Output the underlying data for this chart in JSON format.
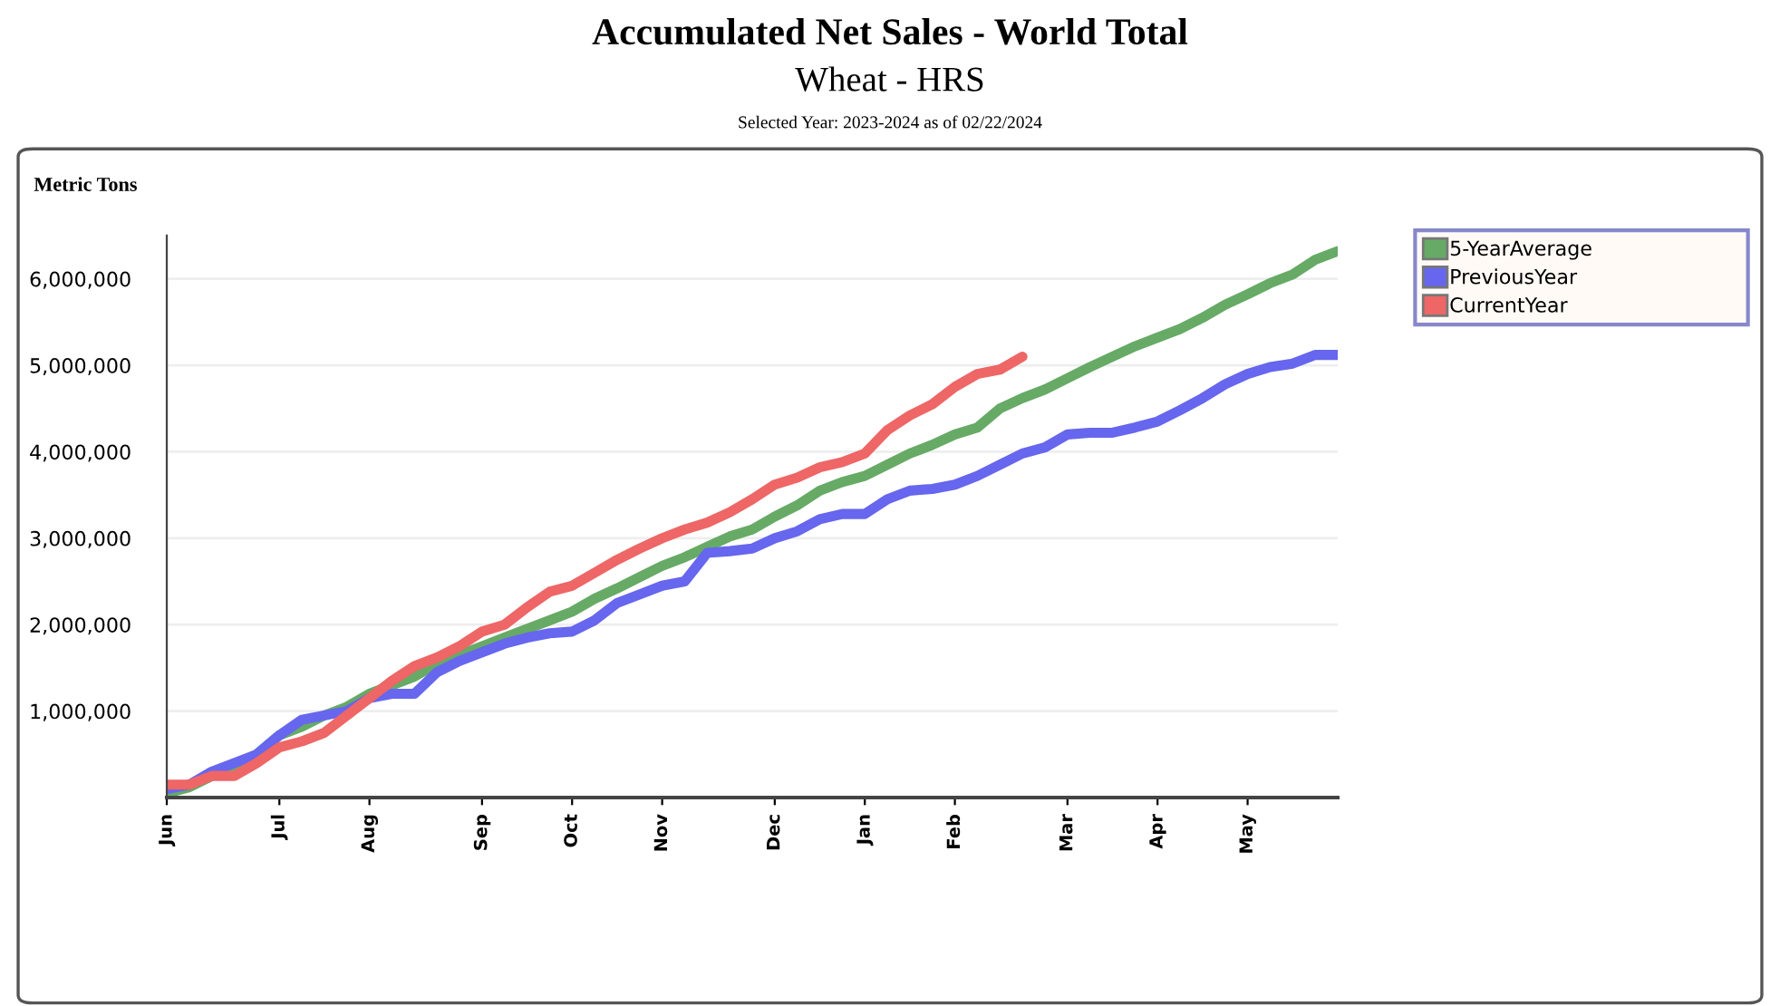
{
  "chart_data": {
    "type": "line",
    "title": "Accumulated Net Sales - World Total",
    "subtitle": "Wheat - HRS",
    "annotations": [
      "Selected Year: 2023-2024 as of 02/22/2024"
    ],
    "ylabel": "Metric Tons",
    "xlim": [
      "2023-06-01",
      "2024-05-30"
    ],
    "ylim": [
      0,
      6500000
    ],
    "xticks": [
      {
        "value": "2023-06-01",
        "label": "Jun"
      },
      {
        "value": "2023-07-06",
        "label": "Jul"
      },
      {
        "value": "2023-08-03",
        "label": "Aug"
      },
      {
        "value": "2023-09-07",
        "label": "Sep"
      },
      {
        "value": "2023-10-05",
        "label": "Oct"
      },
      {
        "value": "2023-11-02",
        "label": "Nov"
      },
      {
        "value": "2023-12-07",
        "label": "Dec"
      },
      {
        "value": "2024-01-04",
        "label": "Jan"
      },
      {
        "value": "2024-02-01",
        "label": "Feb"
      },
      {
        "value": "2024-03-07",
        "label": "Mar"
      },
      {
        "value": "2024-04-04",
        "label": "Apr"
      },
      {
        "value": "2024-05-02",
        "label": "May"
      }
    ],
    "yticks": [
      {
        "value": 1000000,
        "label": "1,000,000"
      },
      {
        "value": 2000000,
        "label": "2,000,000"
      },
      {
        "value": 3000000,
        "label": "3,000,000"
      },
      {
        "value": 4000000,
        "label": "4,000,000"
      },
      {
        "value": 5000000,
        "label": "5,000,000"
      },
      {
        "value": 6000000,
        "label": "6,000,000"
      }
    ],
    "x": [
      "2023-06-01",
      "2023-06-08",
      "2023-06-15",
      "2023-06-22",
      "2023-06-29",
      "2023-07-06",
      "2023-07-13",
      "2023-07-20",
      "2023-07-27",
      "2023-08-03",
      "2023-08-10",
      "2023-08-17",
      "2023-08-24",
      "2023-08-31",
      "2023-09-07",
      "2023-09-14",
      "2023-09-21",
      "2023-09-28",
      "2023-10-05",
      "2023-10-12",
      "2023-10-19",
      "2023-10-26",
      "2023-11-02",
      "2023-11-09",
      "2023-11-16",
      "2023-11-23",
      "2023-11-30",
      "2023-12-07",
      "2023-12-14",
      "2023-12-21",
      "2023-12-28",
      "2024-01-04",
      "2024-01-11",
      "2024-01-18",
      "2024-01-25",
      "2024-02-01",
      "2024-02-08",
      "2024-02-15",
      "2024-02-22",
      "2024-02-29",
      "2024-03-07",
      "2024-03-14",
      "2024-03-21",
      "2024-03-28",
      "2024-04-04",
      "2024-04-11",
      "2024-04-18",
      "2024-04-25",
      "2024-05-02",
      "2024-05-09",
      "2024-05-16",
      "2024-05-23",
      "2024-05-30"
    ],
    "grid": "y",
    "legend": "top right",
    "marker": "none",
    "line_style": "solid",
    "series": [
      {
        "name": "5-YearAverage",
        "color": "#66aa66",
        "values": [
          50000,
          120000,
          250000,
          380000,
          500000,
          720000,
          820000,
          950000,
          1050000,
          1200000,
          1300000,
          1400000,
          1550000,
          1650000,
          1750000,
          1850000,
          1950000,
          2050000,
          2150000,
          2300000,
          2420000,
          2550000,
          2680000,
          2780000,
          2900000,
          3020000,
          3100000,
          3250000,
          3380000,
          3550000,
          3650000,
          3720000,
          3850000,
          3980000,
          4080000,
          4200000,
          4280000,
          4500000,
          4620000,
          4720000,
          4850000,
          4980000,
          5100000,
          5220000,
          5320000,
          5420000,
          5550000,
          5700000,
          5820000,
          5950000,
          6050000,
          6220000,
          6320000
        ]
      },
      {
        "name": "PreviousYear",
        "color": "#6666ee",
        "values": [
          100000,
          150000,
          300000,
          400000,
          500000,
          720000,
          900000,
          950000,
          1000000,
          1150000,
          1200000,
          1200000,
          1450000,
          1580000,
          1680000,
          1780000,
          1850000,
          1900000,
          1920000,
          2050000,
          2250000,
          2350000,
          2450000,
          2500000,
          2830000,
          2850000,
          2880000,
          3000000,
          3080000,
          3220000,
          3280000,
          3280000,
          3450000,
          3550000,
          3570000,
          3620000,
          3720000,
          3850000,
          3980000,
          4050000,
          4200000,
          4220000,
          4220000,
          4280000,
          4350000,
          4480000,
          4620000,
          4780000,
          4900000,
          4980000,
          5020000,
          5120000,
          5120000
        ]
      },
      {
        "name": "CurrentYear",
        "color": "#ee6666",
        "values": [
          150000,
          150000,
          250000,
          250000,
          400000,
          580000,
          650000,
          750000,
          950000,
          1150000,
          1350000,
          1520000,
          1620000,
          1750000,
          1920000,
          2000000,
          2200000,
          2380000,
          2450000,
          2600000,
          2750000,
          2880000,
          3000000,
          3100000,
          3180000,
          3300000,
          3450000,
          3620000,
          3700000,
          3820000,
          3880000,
          3980000,
          4250000,
          4420000,
          4550000,
          4750000,
          4900000,
          4950000,
          5100000,
          null,
          null,
          null,
          null,
          null,
          null,
          null,
          null,
          null,
          null,
          null,
          null,
          null,
          null
        ]
      }
    ]
  }
}
